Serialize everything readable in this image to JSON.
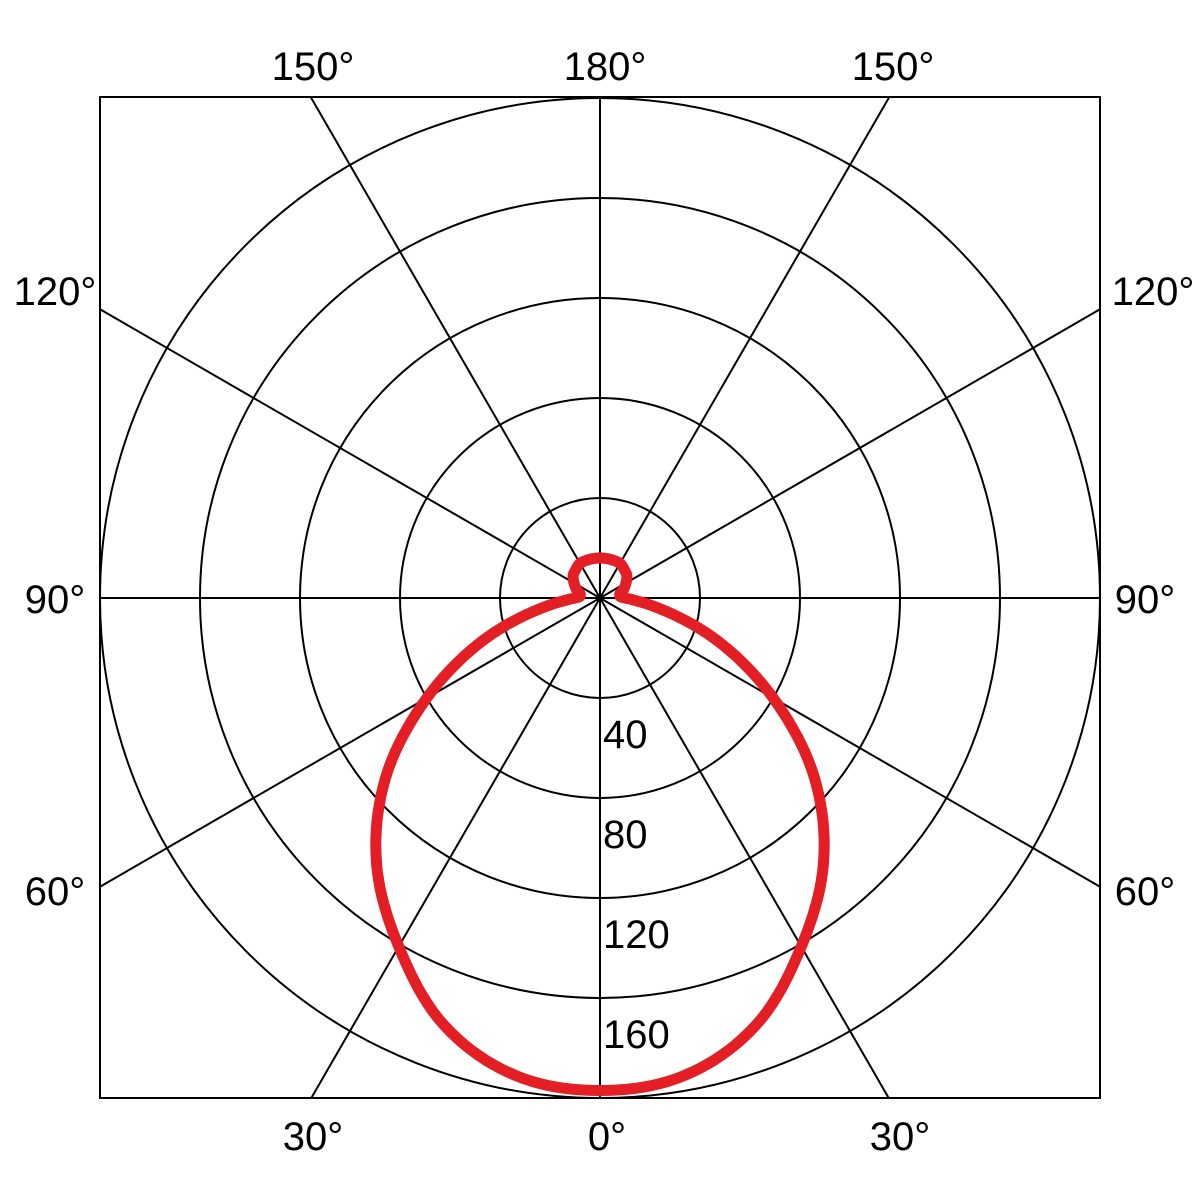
{
  "chart_data": {
    "type": "polar",
    "title": "",
    "angle_unit": "degrees",
    "angle_zero": "bottom",
    "symmetric": true,
    "radial_max": 200,
    "radial_rings": [
      40,
      80,
      120,
      160,
      200
    ],
    "radial_tick_labels": [
      "40",
      "80",
      "120",
      "160"
    ],
    "angle_tick_labels": {
      "top": [
        "150°",
        "180°",
        "150°"
      ],
      "left": [
        "120°",
        "90°",
        "60°"
      ],
      "right": [
        "120°",
        "90°",
        "60°"
      ],
      "bottom": [
        "30°",
        "0°",
        "30°"
      ]
    },
    "spoke_step_deg": 30,
    "grid": true,
    "series": [
      {
        "color": "#e31e24",
        "angles": [
          0,
          10,
          20,
          30,
          40,
          50,
          60,
          70,
          80,
          90,
          100,
          110,
          120,
          130,
          140,
          150,
          160,
          170,
          180
        ],
        "values": [
          197,
          194,
          182,
          161,
          139,
          112,
          80,
          50,
          24,
          10,
          8,
          10,
          12,
          14,
          15,
          16,
          16,
          16,
          16
        ]
      }
    ]
  }
}
